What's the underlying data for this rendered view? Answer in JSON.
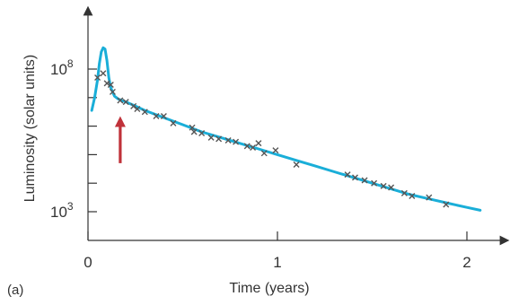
{
  "chart_data": {
    "type": "scatter",
    "panel_label": "(a)",
    "xlabel": "Time (years)",
    "ylabel": "Luminosity (solar units)",
    "xlim": [
      0,
      2.2
    ],
    "ylim_exponent": [
      1.5,
      9.4
    ],
    "y_scale": "log10",
    "x_ticks": [
      0,
      1,
      2
    ],
    "x_tick_labels": [
      "0",
      "1",
      "2"
    ],
    "y_ticks": [
      3,
      4,
      5,
      6,
      7,
      8
    ],
    "y_tick_labels": [
      {
        "base": "10",
        "exp": "3",
        "at": 3
      },
      {
        "base": "10",
        "exp": "8",
        "at": 8
      }
    ],
    "grid": false,
    "series": [
      {
        "kind": "curve",
        "color": "#1aaed8",
        "x": [
          0.02,
          0.035,
          0.05,
          0.06,
          0.07,
          0.08,
          0.09,
          0.1,
          0.11,
          0.12,
          0.14,
          0.16,
          0.2,
          0.25,
          0.3,
          0.4,
          0.5,
          0.6,
          0.7,
          0.8,
          0.9,
          1.0,
          1.1,
          1.2,
          1.3,
          1.4,
          1.5,
          1.6,
          1.7,
          1.8,
          1.9,
          2.0,
          2.07
        ],
        "y": [
          6.55,
          7.0,
          7.6,
          8.2,
          8.6,
          8.75,
          8.7,
          8.3,
          7.7,
          7.35,
          7.05,
          6.95,
          6.85,
          6.7,
          6.55,
          6.3,
          6.05,
          5.8,
          5.6,
          5.4,
          5.2,
          5.0,
          4.8,
          4.6,
          4.4,
          4.2,
          4.0,
          3.8,
          3.6,
          3.45,
          3.3,
          3.15,
          3.05
        ]
      },
      {
        "kind": "points",
        "marker": "x",
        "color": "#555555",
        "x": [
          0.05,
          0.08,
          0.1,
          0.12,
          0.13,
          0.17,
          0.2,
          0.24,
          0.26,
          0.3,
          0.36,
          0.4,
          0.45,
          0.55,
          0.56,
          0.6,
          0.65,
          0.69,
          0.74,
          0.78,
          0.84,
          0.87,
          0.9,
          0.93,
          0.99,
          1.1,
          1.37,
          1.41,
          1.46,
          1.51,
          1.56,
          1.6,
          1.67,
          1.71,
          1.8,
          1.89
        ],
        "y": [
          7.7,
          7.85,
          7.5,
          7.45,
          7.2,
          6.9,
          6.85,
          6.7,
          6.6,
          6.5,
          6.35,
          6.35,
          6.1,
          5.95,
          5.8,
          5.75,
          5.6,
          5.55,
          5.5,
          5.45,
          5.3,
          5.25,
          5.4,
          5.05,
          5.15,
          4.65,
          4.3,
          4.2,
          4.1,
          4.0,
          3.9,
          3.85,
          3.65,
          3.55,
          3.5,
          3.25
        ]
      }
    ],
    "annotations": [
      {
        "kind": "arrow",
        "color": "#c0323a",
        "x": 0.17,
        "y_from": 4.7,
        "y_to": 6.35
      }
    ]
  }
}
